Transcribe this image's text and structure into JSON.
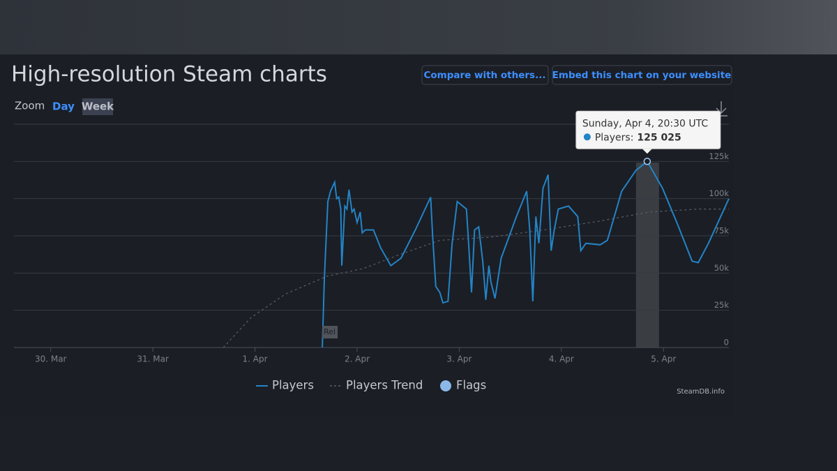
{
  "header": {
    "title": "High-resolution Steam charts",
    "buttons": [
      "Compare with others...",
      "Embed this chart on your website"
    ]
  },
  "zoom": {
    "label": "Zoom",
    "options": [
      "Day",
      "Week"
    ]
  },
  "chart_data": {
    "type": "line",
    "xlim": [
      -0.36,
      6.64
    ],
    "xticks": [
      {
        "value": 0,
        "label": "30. Mar"
      },
      {
        "value": 1,
        "label": "31. Mar"
      },
      {
        "value": 2,
        "label": "1. Apr"
      },
      {
        "value": 3,
        "label": "2. Apr"
      },
      {
        "value": 4,
        "label": "3. Apr"
      },
      {
        "value": 5,
        "label": "4. Apr"
      },
      {
        "value": 6,
        "label": "5. Apr"
      }
    ],
    "ylim": [
      0,
      150000
    ],
    "yticks": [
      0,
      {
        "value": 25000,
        "label": "25k"
      },
      {
        "value": 50000,
        "label": "50k"
      },
      {
        "value": 75000,
        "label": "75k"
      },
      {
        "value": 100000,
        "label": "100k"
      },
      {
        "value": 125000,
        "label": "125k"
      }
    ],
    "grid": true,
    "series": [
      {
        "name": "Players",
        "color": "#2384c6",
        "dashed": false,
        "x": [
          2.659,
          2.679,
          2.713,
          2.74,
          2.78,
          2.8,
          2.82,
          2.84,
          2.85,
          2.88,
          2.9,
          2.92,
          2.95,
          2.97,
          3.0,
          3.03,
          3.05,
          3.08,
          3.16,
          3.23,
          3.33,
          3.43,
          3.57,
          3.72,
          3.74,
          3.77,
          3.81,
          3.84,
          3.89,
          3.93,
          3.98,
          4.07,
          4.09,
          4.12,
          4.15,
          4.19,
          4.23,
          4.26,
          4.29,
          4.31,
          4.35,
          4.41,
          4.56,
          4.66,
          4.69,
          4.72,
          4.75,
          4.78,
          4.82,
          4.87,
          4.9,
          4.93,
          4.97,
          5.07,
          5.16,
          5.19,
          5.24,
          5.38,
          5.45,
          5.59,
          5.73,
          5.84,
          5.99,
          6.13,
          6.28,
          6.34,
          6.44,
          6.64
        ],
        "values": [
          0,
          46000,
          98000,
          105000,
          111000,
          100000,
          101000,
          93000,
          55000,
          95000,
          93000,
          106000,
          91000,
          93000,
          84000,
          91000,
          77000,
          79000,
          79000,
          67000,
          55000,
          60000,
          79000,
          101000,
          74000,
          41000,
          37000,
          30000,
          31000,
          70000,
          98000,
          93000,
          72000,
          37000,
          79000,
          81000,
          58000,
          32000,
          55000,
          44000,
          33000,
          60000,
          88000,
          105000,
          79000,
          31000,
          88000,
          70000,
          107000,
          116000,
          65000,
          79000,
          93000,
          95000,
          88000,
          65000,
          70000,
          69000,
          72000,
          105000,
          119000,
          125025,
          107000,
          84000,
          58000,
          57000,
          70000,
          100000
        ]
      },
      {
        "name": "Players Trend",
        "color": "#5a606a",
        "dashed": true,
        "x": [
          1.69,
          1.96,
          2.3,
          2.71,
          3.06,
          3.4,
          3.81,
          4.29,
          4.83,
          5.38,
          5.86,
          6.34,
          6.64
        ],
        "values": [
          0,
          20000,
          36000,
          48000,
          53000,
          62000,
          72000,
          74000,
          79000,
          85000,
          91000,
          93000,
          93000
        ]
      }
    ],
    "flags_legend": {
      "name": "Flags",
      "color": "#8ab8e8"
    },
    "flags": [
      {
        "x": 2.659,
        "label": "Rel"
      }
    ],
    "tooltip": {
      "title": "Sunday, Apr 4, 20:30 UTC",
      "series": "Players:",
      "value": "125 025",
      "point": 61
    },
    "credit": "SteamDB.info"
  }
}
